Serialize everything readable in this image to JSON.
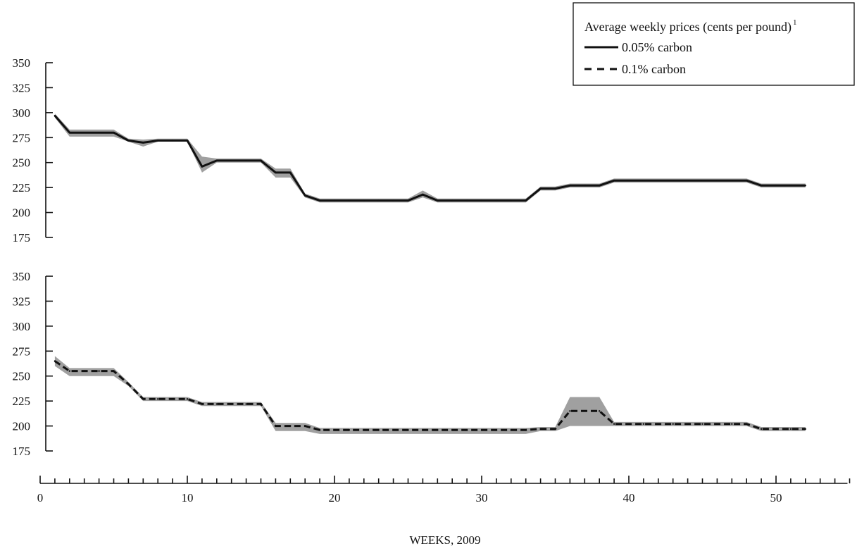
{
  "chart_data": {
    "type": "line",
    "xlabel": "WEEKS, 2009",
    "xlim": [
      0,
      55
    ],
    "x_ticks": [
      0,
      10,
      20,
      30,
      40,
      50
    ],
    "legend": {
      "title": "Average weekly prices (cents per pound)",
      "title_sup": "1",
      "placement": "top-right",
      "entries": [
        {
          "label": "0.05% carbon",
          "style": "solid"
        },
        {
          "label": "0.1% carbon",
          "style": "dashed"
        }
      ]
    },
    "panels": [
      {
        "series_name": "0.05% carbon",
        "style": "solid",
        "ylim": [
          175,
          350
        ],
        "y_ticks": [
          175,
          200,
          225,
          250,
          275,
          300,
          325,
          350
        ],
        "x": [
          1,
          2,
          3,
          4,
          5,
          6,
          7,
          8,
          9,
          10,
          11,
          12,
          13,
          14,
          15,
          16,
          17,
          18,
          19,
          20,
          21,
          22,
          23,
          24,
          25,
          26,
          27,
          28,
          29,
          30,
          31,
          32,
          33,
          34,
          35,
          36,
          37,
          38,
          39,
          40,
          41,
          42,
          43,
          44,
          45,
          46,
          47,
          48,
          49,
          50,
          51,
          52
        ],
        "values": [
          297,
          280,
          280,
          280,
          280,
          272,
          270,
          272,
          272,
          272,
          246,
          252,
          252,
          252,
          252,
          240,
          240,
          217,
          212,
          212,
          212,
          212,
          212,
          212,
          212,
          218,
          212,
          212,
          212,
          212,
          212,
          212,
          212,
          224,
          224,
          227,
          227,
          227,
          232,
          232,
          232,
          232,
          232,
          232,
          232,
          232,
          232,
          232,
          227,
          227,
          227,
          227
        ],
        "low": [
          295,
          276,
          276,
          276,
          276,
          271,
          266,
          271,
          271,
          271,
          240,
          250,
          250,
          250,
          250,
          235,
          235,
          215,
          210,
          210,
          210,
          210,
          210,
          210,
          210,
          215,
          210,
          210,
          210,
          210,
          210,
          210,
          210,
          222,
          222,
          225,
          225,
          225,
          230,
          230,
          230,
          230,
          230,
          230,
          230,
          230,
          230,
          230,
          225,
          225,
          225,
          225
        ],
        "high": [
          299,
          283,
          283,
          283,
          283,
          274,
          273,
          274,
          274,
          274,
          256,
          254,
          254,
          254,
          254,
          244,
          244,
          219,
          214,
          214,
          214,
          214,
          214,
          214,
          214,
          222,
          214,
          214,
          214,
          214,
          214,
          214,
          214,
          226,
          226,
          229,
          229,
          229,
          234,
          234,
          234,
          234,
          234,
          234,
          234,
          234,
          234,
          234,
          229,
          229,
          229,
          229
        ]
      },
      {
        "series_name": "0.1% carbon",
        "style": "dashed",
        "ylim": [
          175,
          350
        ],
        "y_ticks": [
          175,
          200,
          225,
          250,
          275,
          300,
          325,
          350
        ],
        "x": [
          1,
          2,
          3,
          4,
          5,
          6,
          7,
          8,
          9,
          10,
          11,
          12,
          13,
          14,
          15,
          16,
          17,
          18,
          19,
          20,
          21,
          22,
          23,
          24,
          25,
          26,
          27,
          28,
          29,
          30,
          31,
          32,
          33,
          34,
          35,
          36,
          37,
          38,
          39,
          40,
          41,
          42,
          43,
          44,
          45,
          46,
          47,
          48,
          49,
          50,
          51,
          52
        ],
        "values": [
          265,
          255,
          255,
          255,
          255,
          242,
          227,
          227,
          227,
          227,
          222,
          222,
          222,
          222,
          222,
          200,
          200,
          200,
          196,
          196,
          196,
          196,
          196,
          196,
          196,
          196,
          196,
          196,
          196,
          196,
          196,
          196,
          196,
          197,
          197,
          215,
          215,
          215,
          202,
          202,
          202,
          202,
          202,
          202,
          202,
          202,
          202,
          202,
          197,
          197,
          197,
          197
        ],
        "low": [
          260,
          250,
          250,
          250,
          250,
          240,
          225,
          225,
          225,
          225,
          220,
          220,
          220,
          220,
          220,
          195,
          195,
          195,
          192,
          192,
          192,
          192,
          192,
          192,
          192,
          192,
          192,
          192,
          192,
          192,
          192,
          192,
          192,
          195,
          195,
          200,
          200,
          200,
          200,
          200,
          200,
          200,
          200,
          200,
          200,
          200,
          200,
          200,
          195,
          195,
          195,
          195
        ],
        "high": [
          270,
          258,
          258,
          258,
          258,
          244,
          229,
          229,
          229,
          229,
          224,
          224,
          224,
          224,
          224,
          203,
          203,
          203,
          198,
          198,
          198,
          198,
          198,
          198,
          198,
          198,
          198,
          198,
          198,
          198,
          198,
          198,
          198,
          199,
          199,
          229,
          229,
          229,
          204,
          204,
          204,
          204,
          204,
          204,
          204,
          204,
          204,
          204,
          199,
          199,
          199,
          199
        ]
      }
    ]
  }
}
